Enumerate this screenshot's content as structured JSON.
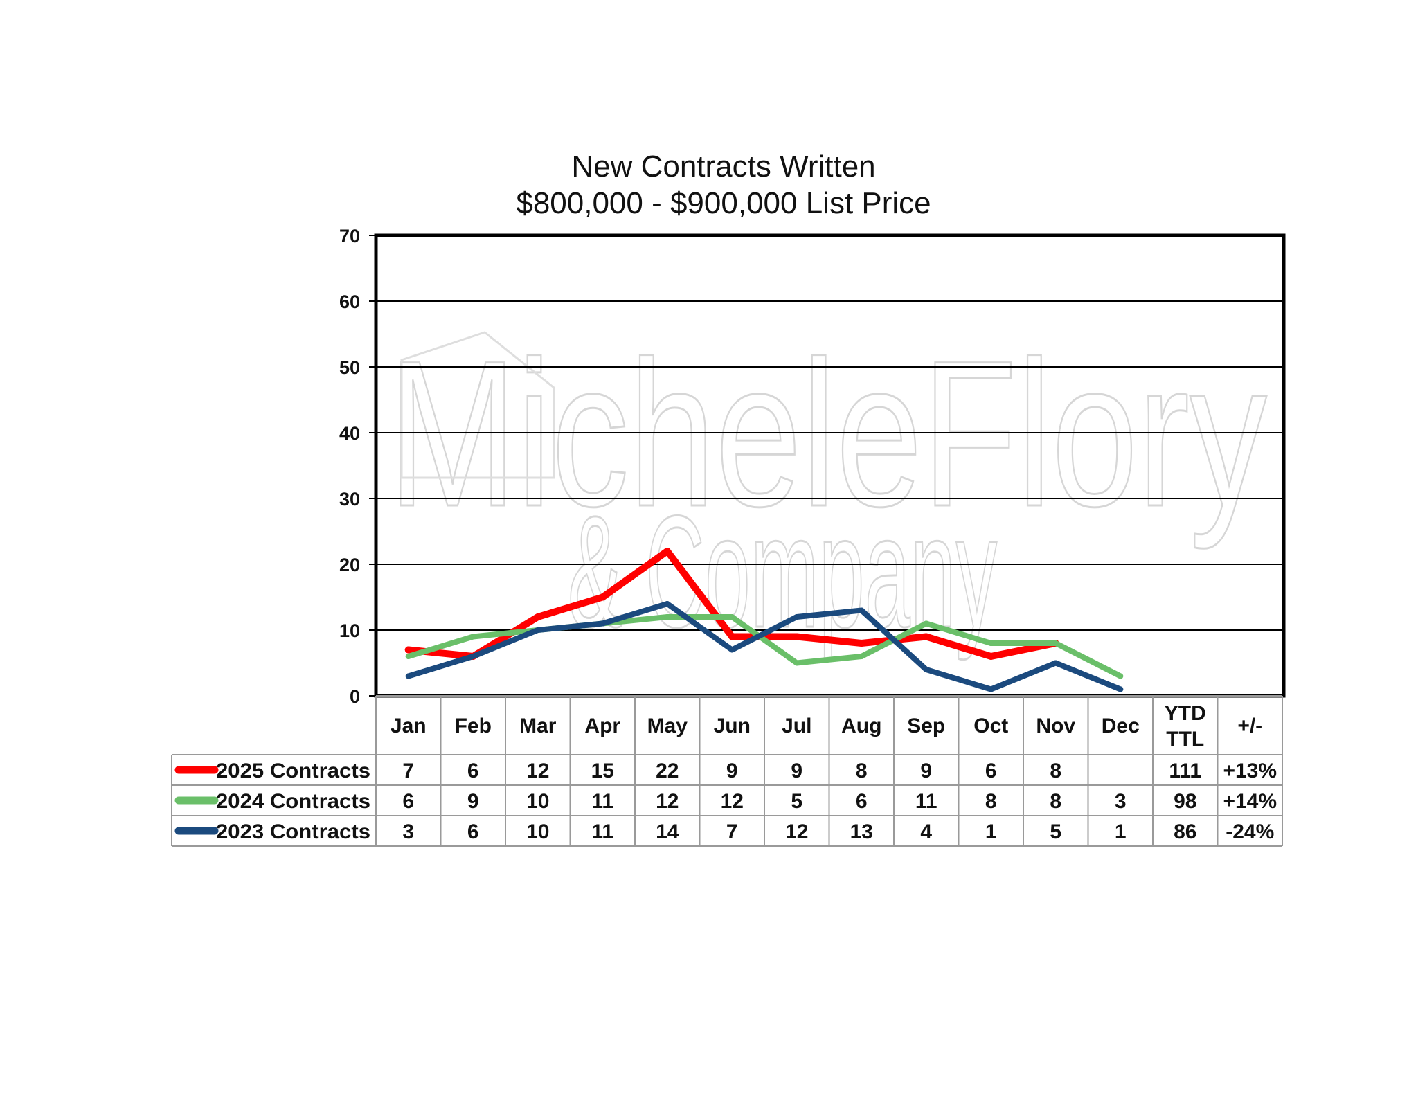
{
  "chart_data": {
    "type": "line",
    "title": "New Contracts Written",
    "subtitle": "$800,000 - $900,000 List Price",
    "categories": [
      "Jan",
      "Feb",
      "Mar",
      "Apr",
      "May",
      "Jun",
      "Jul",
      "Aug",
      "Sep",
      "Oct",
      "Nov",
      "Dec"
    ],
    "ylim": [
      0,
      70
    ],
    "yticks": [
      0,
      10,
      20,
      30,
      40,
      50,
      60,
      70
    ],
    "grid": true,
    "series": [
      {
        "name": "2025 Contracts",
        "color": "#ff0000",
        "values": [
          7,
          6,
          12,
          15,
          22,
          9,
          9,
          8,
          9,
          6,
          8,
          null
        ],
        "ytd": "111",
        "change": "+13%"
      },
      {
        "name": "2024 Contracts",
        "color": "#6abf69",
        "values": [
          6,
          9,
          10,
          11,
          12,
          12,
          5,
          6,
          11,
          8,
          8,
          3
        ],
        "ytd": "98",
        "change": "+14%"
      },
      {
        "name": "2023 Contracts",
        "color": "#1b4a7e",
        "values": [
          3,
          6,
          10,
          11,
          14,
          7,
          12,
          13,
          4,
          1,
          5,
          1
        ],
        "ytd": "86",
        "change": "-24%"
      }
    ],
    "table_headers": {
      "ytd": [
        "YTD",
        "TTL"
      ],
      "change": "+/-"
    },
    "watermark": [
      "MicheleFlory",
      "& Company"
    ]
  }
}
